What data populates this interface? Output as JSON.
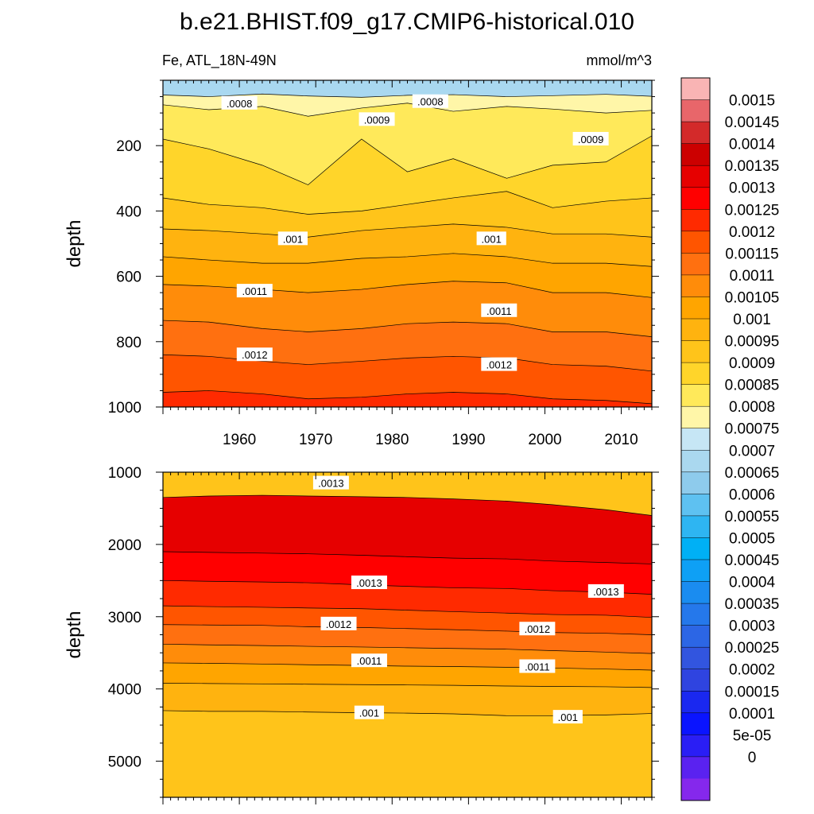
{
  "chart_data": {
    "type": "heatmap",
    "title": "b.e21.BHIST.f09_g17.CMIP6-historical.010",
    "variable_label": "Fe, ATL_18N-49N",
    "units": "mmol/m^3",
    "x_axis": {
      "label": "",
      "range": [
        1950,
        2014
      ],
      "ticks": [
        1960,
        1970,
        1980,
        1990,
        2000,
        2010
      ],
      "tick_labels": [
        "1960",
        "1970",
        "1980",
        "1990",
        "2000",
        "2010"
      ]
    },
    "panels": [
      {
        "name": "upper",
        "ylabel": "depth",
        "ylim": [
          0,
          1000
        ],
        "y_ticks": [
          200,
          400,
          600,
          800,
          1000
        ],
        "y_tick_labels": [
          "200",
          "400",
          "600",
          "800",
          "1000"
        ],
        "contour_lines": [
          {
            "level": 0.00075,
            "depths": [
              45,
              50,
              42,
              48,
              52,
              46,
              44,
              50,
              47,
              43,
              49
            ]
          },
          {
            "level": 0.0008,
            "depths": [
              75,
              90,
              80,
              110,
              85,
              70,
              95,
              80,
              88,
              100,
              92
            ]
          },
          {
            "level": 0.00085,
            "depths": [
              180,
              210,
              260,
              320,
              180,
              280,
              240,
              300,
              260,
              250,
              170
            ]
          },
          {
            "level": 0.0009,
            "depths": [
              360,
              380,
              390,
              410,
              400,
              380,
              360,
              340,
              390,
              370,
              360
            ]
          },
          {
            "level": 0.00095,
            "depths": [
              455,
              460,
              470,
              480,
              460,
              450,
              440,
              450,
              470,
              470,
              480
            ]
          },
          {
            "level": 0.001,
            "depths": [
              540,
              550,
              560,
              560,
              545,
              540,
              530,
              540,
              560,
              560,
              570
            ]
          },
          {
            "level": 0.00105,
            "depths": [
              625,
              630,
              640,
              650,
              640,
              625,
              615,
              620,
              650,
              650,
              665
            ]
          },
          {
            "level": 0.0011,
            "depths": [
              735,
              740,
              760,
              770,
              760,
              745,
              740,
              745,
              770,
              770,
              785
            ]
          },
          {
            "level": 0.00115,
            "depths": [
              840,
              845,
              860,
              870,
              860,
              850,
              845,
              850,
              870,
              875,
              890
            ]
          },
          {
            "level": 0.0012,
            "depths": [
              955,
              950,
              960,
              975,
              970,
              960,
              955,
              960,
              975,
              980,
              990
            ]
          }
        ],
        "contour_labels": [
          {
            "text": ".0008",
            "year": 1960,
            "depth": 70
          },
          {
            "text": ".0008",
            "year": 1985,
            "depth": 65
          },
          {
            "text": ".0009",
            "year": 1978,
            "depth": 120
          },
          {
            "text": ".0009",
            "year": 2006,
            "depth": 180
          },
          {
            "text": ".001",
            "year": 1967,
            "depth": 485
          },
          {
            "text": ".001",
            "year": 1993,
            "depth": 485
          },
          {
            "text": ".0011",
            "year": 1962,
            "depth": 645
          },
          {
            "text": ".0011",
            "year": 1994,
            "depth": 705
          },
          {
            "text": ".0012",
            "year": 1962,
            "depth": 840
          },
          {
            "text": ".0012",
            "year": 1994,
            "depth": 870
          }
        ]
      },
      {
        "name": "lower",
        "ylabel": "depth",
        "ylim": [
          1000,
          5500
        ],
        "y_ticks": [
          1000,
          2000,
          3000,
          4000,
          5000
        ],
        "y_tick_labels": [
          "1000",
          "2000",
          "3000",
          "4000",
          "5000"
        ],
        "contour_lines": [
          {
            "level": 0.00135,
            "depths": [
              1350,
              1330,
              1320,
              1330,
              1340,
              1350,
              1370,
              1400,
              1450,
              1520,
              1600
            ]
          },
          {
            "level": 0.0013,
            "depths": [
              2100,
              2110,
              2120,
              2130,
              2150,
              2170,
              2190,
              2200,
              2230,
              2250,
              2270
            ]
          },
          {
            "level": 0.00125,
            "depths": [
              2500,
              2510,
              2520,
              2530,
              2560,
              2580,
              2600,
              2610,
              2640,
              2660,
              2690
            ]
          },
          {
            "level": 0.0012,
            "depths": [
              2850,
              2860,
              2870,
              2880,
              2890,
              2910,
              2930,
              2950,
              2970,
              2980,
              3010
            ]
          },
          {
            "level": 0.00115,
            "depths": [
              3110,
              3115,
              3120,
              3140,
              3150,
              3165,
              3180,
              3200,
              3220,
              3230,
              3250
            ]
          },
          {
            "level": 0.0011,
            "depths": [
              3380,
              3390,
              3400,
              3410,
              3420,
              3430,
              3440,
              3450,
              3470,
              3490,
              3510
            ]
          },
          {
            "level": 0.00105,
            "depths": [
              3640,
              3645,
              3655,
              3665,
              3675,
              3685,
              3690,
              3700,
              3710,
              3725,
              3740
            ]
          },
          {
            "level": 0.001,
            "depths": [
              3920,
              3925,
              3930,
              3935,
              3940,
              3945,
              3950,
              3960,
              3965,
              3970,
              3980
            ]
          },
          {
            "level": 0.00095,
            "depths": [
              4300,
              4310,
              4310,
              4320,
              4330,
              4335,
              4345,
              4370,
              4370,
              4360,
              4340
            ]
          }
        ],
        "contour_labels": [
          {
            "text": ".0013",
            "year": 1972,
            "depth": 1150
          },
          {
            "text": ".0013",
            "year": 1977,
            "depth": 2530
          },
          {
            "text": ".0013",
            "year": 2008,
            "depth": 2650
          },
          {
            "text": ".0012",
            "year": 1973,
            "depth": 3100
          },
          {
            "text": ".0012",
            "year": 1999,
            "depth": 3170
          },
          {
            "text": ".0011",
            "year": 1977,
            "depth": 3610
          },
          {
            "text": ".0011",
            "year": 1999,
            "depth": 3690
          },
          {
            "text": ".001",
            "year": 1977,
            "depth": 4330
          },
          {
            "text": ".001",
            "year": 2003,
            "depth": 4390
          }
        ]
      }
    ],
    "colorbar": {
      "colors": [
        "#f9b4b4",
        "#e8666a",
        "#d32a2a",
        "#cc0000",
        "#e60000",
        "#ff0000",
        "#ff2a00",
        "#ff5500",
        "#ff7010",
        "#ff8c0a",
        "#ffa500",
        "#ffb30f",
        "#ffc41a",
        "#ffd52a",
        "#ffe95a",
        "#fff6a8",
        "#c6e6f5",
        "#aad8ef",
        "#8ecbec",
        "#5ec1f1",
        "#2eb5f2",
        "#00b0f5",
        "#0ea0f5",
        "#1a8cf0",
        "#2578eb",
        "#2c66e5",
        "#3255df",
        "#2f44e0",
        "#1a28f0",
        "#0a14ff",
        "#2a1ef5",
        "#5a22f0",
        "#8528ec"
      ],
      "labels": [
        "0.0015",
        "0.00145",
        "0.0014",
        "0.00135",
        "0.0013",
        "0.00125",
        "0.0012",
        "0.00115",
        "0.0011",
        "0.00105",
        "0.001",
        "0.00095",
        "0.0009",
        "0.00085",
        "0.0008",
        "0.00075",
        "0.0007",
        "0.00065",
        "0.0006",
        "0.00055",
        "0.0005",
        "0.00045",
        "0.0004",
        "0.00035",
        "0.0003",
        "0.00025",
        "0.0002",
        "0.00015",
        "0.0001",
        "5e-05",
        "0"
      ]
    },
    "fill_colors": {
      "lt_0.00075": "#a9d8f0",
      "0.00075-0.0008": "#fff6a8",
      "0.0008-0.00085": "#ffe95a",
      "0.00085-0.0009": "#ffd52a",
      "0.0009-0.00095": "#ffc41a",
      "0.00095-0.001": "#ffb30f",
      "0.001-0.00105": "#ffa500",
      "0.00105-0.0011": "#ff8c0a",
      "0.0011-0.00115": "#ff7010",
      "0.00115-0.0012": "#ff5500",
      "0.0012-0.00125": "#ff2a00",
      "0.00125-0.0013": "#ff0000",
      "0.0013-0.00135": "#e60000",
      "0.00135-0.0014": "#cc0000"
    },
    "contour_years": [
      1950,
      1956,
      1963,
      1969,
      1976,
      1982,
      1988,
      1995,
      2001,
      2008,
      2014
    ]
  }
}
